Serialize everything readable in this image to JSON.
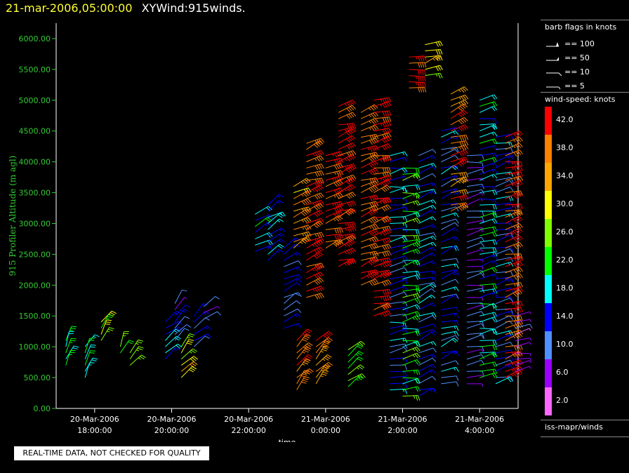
{
  "header": {
    "timestamp": "21-mar-2006,05:00:00",
    "product": "XYWind:915winds."
  },
  "notice": "REAL-TIME DATA, NOT CHECKED FOR QUALITY",
  "legend": {
    "barb_title": "barb flags in knots",
    "barbs": [
      {
        "label": "== 100",
        "knots": 100
      },
      {
        "label": "== 50",
        "knots": 50
      },
      {
        "label": "== 10",
        "knots": 10
      },
      {
        "label": "== 5",
        "knots": 5
      }
    ],
    "speed_title": "wind-speed: knots",
    "colorbar": [
      {
        "label": "42.0",
        "color": "#ff0000"
      },
      {
        "label": "38.0",
        "color": "#ff7f00"
      },
      {
        "label": "34.0",
        "color": "#ffa500"
      },
      {
        "label": "30.0",
        "color": "#ffff00"
      },
      {
        "label": "26.0",
        "color": "#7fff00"
      },
      {
        "label": "22.0",
        "color": "#00ff00"
      },
      {
        "label": "18.0",
        "color": "#00ffff"
      },
      {
        "label": "14.0",
        "color": "#0000ff"
      },
      {
        "label": "10.0",
        "color": "#4f8fff"
      },
      {
        "label": "6.0",
        "color": "#9900ff"
      },
      {
        "label": "2.0",
        "color": "#ff66ff"
      }
    ],
    "source": "iss-mapr/winds"
  },
  "chart_data": {
    "type": "scatter",
    "title": "21-mar-2006,05:00:00 XYWind:915winds.",
    "xlabel": "time",
    "ylabel": "915 Profiler Altitude (m agl)",
    "ylim": [
      0,
      6250
    ],
    "xlim": [
      "2006-03-20T17:00",
      "2006-03-21T05:00"
    ],
    "yticks": [
      "0.00",
      "500.00",
      "1000.00",
      "1500.00",
      "2000.00",
      "2500.00",
      "3000.00",
      "3500.00",
      "4000.00",
      "4500.00",
      "5000.00",
      "5500.00",
      "6000.00"
    ],
    "xticks": [
      {
        "date": "20-Mar-2006",
        "time": "18:00:00",
        "t": "2006-03-20T18:00"
      },
      {
        "date": "20-Mar-2006",
        "time": "20:00:00",
        "t": "2006-03-20T20:00"
      },
      {
        "date": "20-Mar-2006",
        "time": "22:00:00",
        "t": "2006-03-20T22:00"
      },
      {
        "date": "21-Mar-2006",
        "time": "0:00:00",
        "t": "2006-03-21T00:00"
      },
      {
        "date": "21-Mar-2006",
        "time": "2:00:00",
        "t": "2006-03-21T02:00"
      },
      {
        "date": "21-Mar-2006",
        "time": "4:00:00",
        "t": "2006-03-21T04:00"
      }
    ],
    "grid": false,
    "legend_position": "right",
    "profiles": [
      {
        "t": "2006-03-20T17:15",
        "bottom": 650,
        "top": 1100,
        "speed": 23,
        "dir": 200
      },
      {
        "t": "2006-03-20T17:45",
        "bottom": 500,
        "top": 1000,
        "speed": 19,
        "dir": 210
      },
      {
        "t": "2006-03-20T18:10",
        "bottom": 1050,
        "top": 1400,
        "speed": 27,
        "dir": 210
      },
      {
        "t": "2006-03-20T18:40",
        "bottom": 850,
        "top": 1000,
        "speed": 25,
        "dir": 200
      },
      {
        "t": "2006-03-20T18:55",
        "bottom": 650,
        "top": 900,
        "speed": 27,
        "dir": 220
      },
      {
        "t": "2006-03-20T19:50",
        "bottom": 800,
        "top": 1400,
        "speed": 17,
        "dir": 230
      },
      {
        "t": "2006-03-20T20:05",
        "bottom": 1100,
        "top": 1700,
        "speed": 11,
        "dir": 220
      },
      {
        "t": "2006-03-20T20:15",
        "bottom": 500,
        "top": 1000,
        "speed": 29,
        "dir": 220
      },
      {
        "t": "2006-03-20T20:35",
        "bottom": 950,
        "top": 1500,
        "speed": 14,
        "dir": 230
      },
      {
        "t": "2006-03-20T20:50",
        "bottom": 1400,
        "top": 1650,
        "speed": 10,
        "dir": 230
      },
      {
        "t": "2006-03-20T22:10",
        "bottom": 2500,
        "top": 3150,
        "speed": 17,
        "dir": 240
      },
      {
        "t": "2006-03-20T22:30",
        "bottom": 2400,
        "top": 3300,
        "speed": 17,
        "dir": 240
      },
      {
        "t": "2006-03-20T22:55",
        "bottom": 1300,
        "top": 2600,
        "speed": 14,
        "dir": 240
      },
      {
        "t": "2006-03-20T23:10",
        "bottom": 2600,
        "top": 3600,
        "speed": 35,
        "dir": 240
      },
      {
        "t": "2006-03-20T23:15",
        "bottom": 300,
        "top": 1100,
        "speed": 37,
        "dir": 220
      },
      {
        "t": "2006-03-20T23:30",
        "bottom": 1800,
        "top": 4300,
        "speed": 41,
        "dir": 250
      },
      {
        "t": "2006-03-20T23:45",
        "bottom": 350,
        "top": 1100,
        "speed": 37,
        "dir": 220
      },
      {
        "t": "2006-03-21T00:00",
        "bottom": 2600,
        "top": 4100,
        "speed": 40,
        "dir": 250
      },
      {
        "t": "2006-03-21T00:20",
        "bottom": 2300,
        "top": 4900,
        "speed": 42,
        "dir": 250
      },
      {
        "t": "2006-03-21T00:35",
        "bottom": 350,
        "top": 950,
        "speed": 26,
        "dir": 230
      },
      {
        "t": "2006-03-21T00:55",
        "bottom": 2000,
        "top": 4800,
        "speed": 40,
        "dir": 250
      },
      {
        "t": "2006-03-21T01:15",
        "bottom": 1500,
        "top": 5000,
        "speed": 42,
        "dir": 255
      },
      {
        "t": "2006-03-21T01:40",
        "bottom": 300,
        "top": 4100,
        "speed": 14,
        "dir": 260
      },
      {
        "t": "2006-03-21T02:00",
        "bottom": 150,
        "top": 3900,
        "speed": 22,
        "dir": 260
      },
      {
        "t": "2006-03-21T02:10",
        "bottom": 5200,
        "top": 5700,
        "speed": 42,
        "dir": 260
      },
      {
        "t": "2006-03-21T02:25",
        "bottom": 200,
        "top": 4100,
        "speed": 14,
        "dir": 250
      },
      {
        "t": "2006-03-21T02:35",
        "bottom": 5400,
        "top": 5900,
        "speed": 30,
        "dir": 250
      },
      {
        "t": "2006-03-21T03:00",
        "bottom": 350,
        "top": 4500,
        "speed": 14,
        "dir": 250
      },
      {
        "t": "2006-03-21T03:15",
        "bottom": 3200,
        "top": 5100,
        "speed": 38,
        "dir": 250
      },
      {
        "t": "2006-03-21T03:40",
        "bottom": 400,
        "top": 4100,
        "speed": 8,
        "dir": 260
      },
      {
        "t": "2006-03-21T04:00",
        "bottom": 500,
        "top": 5000,
        "speed": 18,
        "dir": 260
      },
      {
        "t": "2006-03-21T04:25",
        "bottom": 400,
        "top": 4400,
        "speed": 14,
        "dir": 255
      },
      {
        "t": "2006-03-21T04:40",
        "bottom": 500,
        "top": 4400,
        "speed": 40,
        "dir": 255
      },
      {
        "t": "2006-03-21T04:55",
        "bottom": 600,
        "top": 1500,
        "speed": 6,
        "dir": 260
      }
    ]
  }
}
